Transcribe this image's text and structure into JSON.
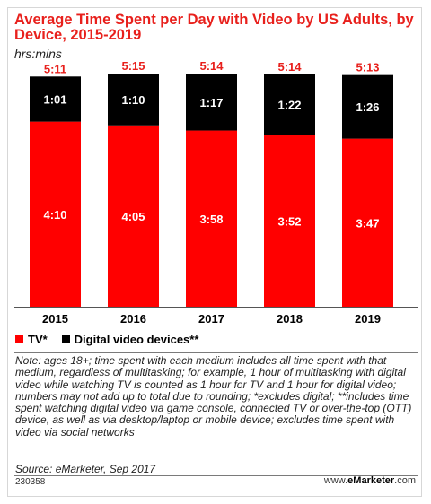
{
  "title": "Average Time Spent per Day with Video by US Adults, by Device, 2015-2019",
  "subtitle": "hrs:mins",
  "legend": [
    {
      "label": "TV*",
      "color": "#ff0000"
    },
    {
      "label": "Digital video devices**",
      "color": "#000000"
    }
  ],
  "note": "Note: ages 18+; time spent with each medium includes all time spent with that medium, regardless of multitasking; for example, 1 hour of multitasking with digital video while watching TV is counted as 1 hour for TV and 1 hour for digital video; numbers may not add up to total due to rounding; *excludes digital; **includes time spent watching digital video via game console, connected TV or over-the-top (OTT) device, as well as via desktop/laptop or mobile device; excludes time spent with video via social networks",
  "source": "Source: eMarketer, Sep 2017",
  "footer": {
    "id": "230358",
    "brand_prefix": "www.",
    "brand_name": "eMarketer",
    "brand_suffix": ".com"
  },
  "chart_data": {
    "type": "bar",
    "stacked": true,
    "title": "Average Time Spent per Day with Video by US Adults, by Device, 2015-2019",
    "subtitle": "hrs:mins",
    "categories": [
      "2015",
      "2016",
      "2017",
      "2018",
      "2019"
    ],
    "series": [
      {
        "name": "TV*",
        "color": "#ff0000",
        "labels": [
          "4:10",
          "4:05",
          "3:58",
          "3:52",
          "3:47"
        ],
        "values": [
          250,
          245,
          238,
          232,
          227
        ]
      },
      {
        "name": "Digital video devices**",
        "color": "#000000",
        "labels": [
          "1:01",
          "1:10",
          "1:17",
          "1:22",
          "1:26"
        ],
        "values": [
          61,
          70,
          77,
          82,
          86
        ]
      }
    ],
    "totals": [
      "5:11",
      "5:15",
      "5:14",
      "5:14",
      "5:13"
    ],
    "total_color": "#e8201c",
    "units": "minutes",
    "ylim": [
      0,
      315
    ],
    "grid": false,
    "legend_position": "bottom-left"
  }
}
